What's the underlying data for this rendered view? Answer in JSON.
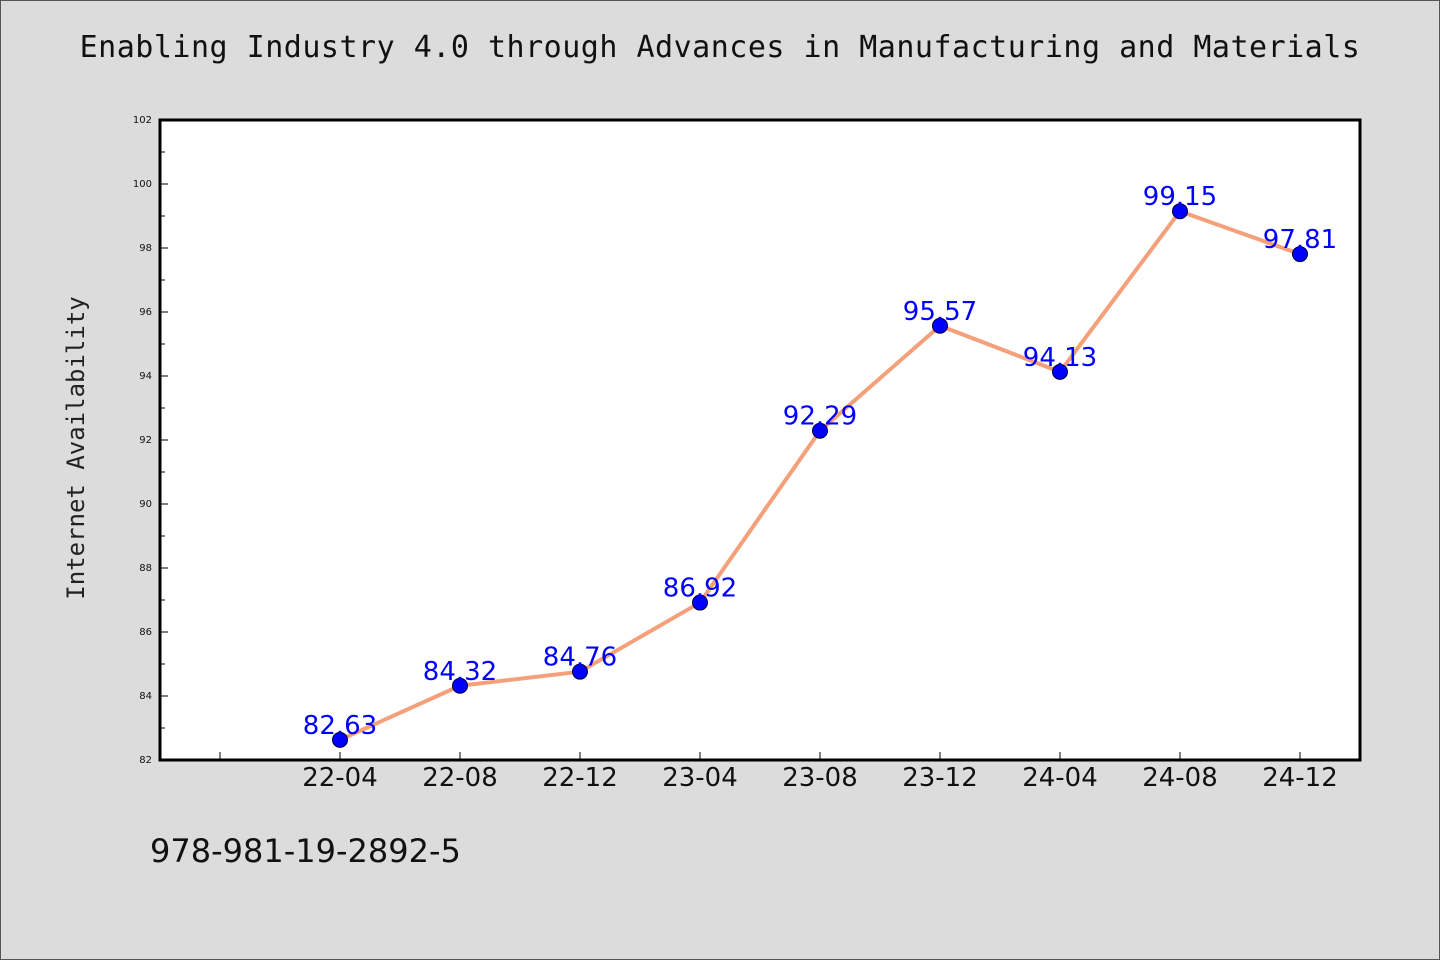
{
  "chart_data": {
    "type": "line",
    "title": "Enabling Industry 4.0 through Advances in Manufacturing and Materials",
    "xlabel": "",
    "ylabel": "Internet Availability",
    "categories": [
      "22-04",
      "22-08",
      "22-12",
      "23-04",
      "23-08",
      "23-12",
      "24-04",
      "24-08",
      "24-12"
    ],
    "series": [
      {
        "values": [
          82.63,
          84.32,
          84.76,
          86.92,
          92.29,
          95.57,
          94.13,
          99.15,
          97.81
        ],
        "data_labels": [
          "82.63",
          "84.32",
          "84.76",
          "86.92",
          "92.29",
          "95.57",
          "94.13",
          "99.15",
          "97.81"
        ]
      }
    ],
    "ylim": [
      82,
      102
    ],
    "yticks": [
      "82",
      "84",
      "86",
      "88",
      "90",
      "92",
      "94",
      "96",
      "98",
      "100",
      "102"
    ],
    "grid": false,
    "colors": {
      "line": "#f4a07a",
      "marker": "#0000ff",
      "label": "#0000ff",
      "background": "#dcdcdc",
      "plot_background": "#ffffff"
    }
  },
  "footer": "978-981-19-2892-5"
}
